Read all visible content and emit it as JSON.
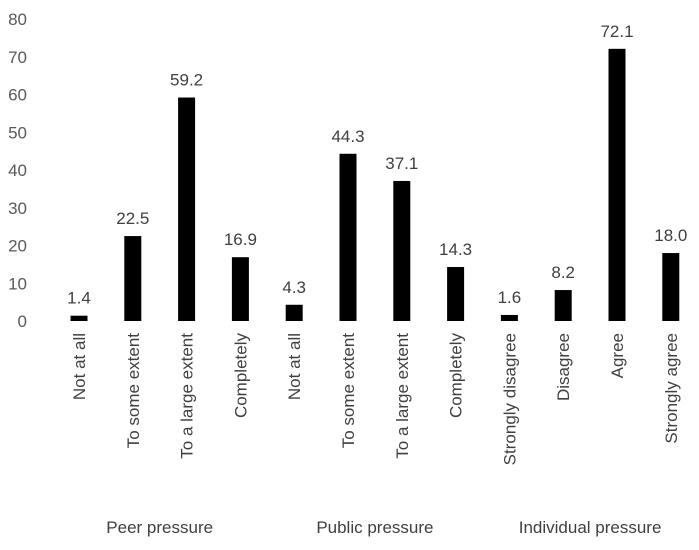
{
  "chart_data": {
    "type": "bar",
    "title": "",
    "xlabel": "",
    "ylabel": "",
    "ylim": [
      0,
      80
    ],
    "yticks": [
      "0",
      "10",
      "20",
      "30",
      "40",
      "50",
      "60",
      "70",
      "80"
    ],
    "grid": false,
    "legend": "none",
    "bar_color": "#000000",
    "groups": [
      {
        "name": "Peer pressure",
        "categories": [
          "Not at all",
          "To some extent",
          "To a large extent",
          "Completely"
        ],
        "values": [
          1.4,
          22.5,
          59.2,
          16.9
        ],
        "labels": [
          "1.4",
          "22.5",
          "59.2",
          "16.9"
        ]
      },
      {
        "name": "Public pressure",
        "categories": [
          "Not at all",
          "To some extent",
          "To a large extent",
          "Completely"
        ],
        "values": [
          4.3,
          44.3,
          37.1,
          14.3
        ],
        "labels": [
          "4.3",
          "44.3",
          "37.1",
          "14.3"
        ]
      },
      {
        "name": "Individual pressure",
        "categories": [
          "Strongly disagree",
          "Disagree",
          "Agree",
          "Strongly agree"
        ],
        "values": [
          1.6,
          8.2,
          72.1,
          18.0
        ],
        "labels": [
          "1.6",
          "8.2",
          "72.1",
          "18.0"
        ]
      }
    ]
  }
}
